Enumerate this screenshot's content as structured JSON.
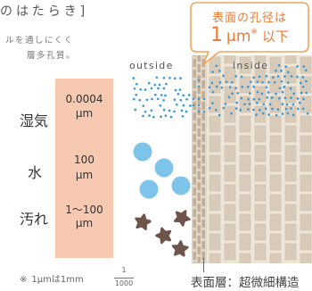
{
  "heading": "のはたらき]",
  "caption": {
    "line1": "ルを通しにくく",
    "line2": "層多孔質。"
  },
  "bubble": {
    "line1": "表面の孔径は",
    "number": "1",
    "unit": "μm",
    "mark": "※",
    "suffix": "以下"
  },
  "labels": {
    "outside": "outside",
    "inside": "inside"
  },
  "rows": [
    {
      "name": "湿気",
      "size": "0.0004",
      "unit": "μm"
    },
    {
      "name": "水",
      "size": "100",
      "unit": "μm"
    },
    {
      "name": "汚れ",
      "size": "1〜100",
      "unit": "μm"
    }
  ],
  "footnote": {
    "mark": "※",
    "text": "1μmは1mm",
    "numerator": "1",
    "denominator": "1000"
  },
  "surface_label": "表面層：超微細構造",
  "colors": {
    "accent": "#ea7a33",
    "bubble_border": "#f0a35a",
    "size_panel": "#f7c9b0",
    "moisture": "#3f9ad3",
    "water": "#7ec4ea",
    "dirt": "#6e554c",
    "membrane_bg": "#eee5d9",
    "membrane_brick": "#d9cbb9",
    "membrane_surface": "#bfae9a"
  }
}
